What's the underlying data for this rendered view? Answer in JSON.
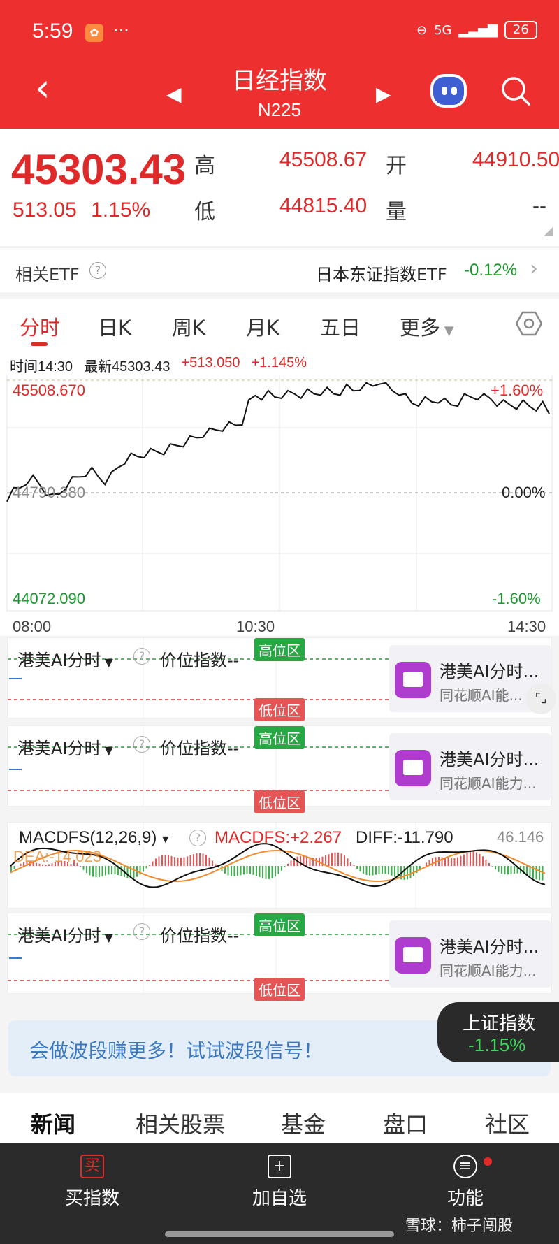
{
  "status_bar": {
    "time": "5:59",
    "app_icon": "app-badge",
    "more": "···",
    "network": "5G",
    "battery": "26"
  },
  "header": {
    "title": "日经指数",
    "subtitle": "N225"
  },
  "quote": {
    "price": "45303.43",
    "change": "513.05",
    "change_pct": "1.15%",
    "high_label": "高",
    "high": "45508.67",
    "open_label": "开",
    "open": "44910.50",
    "low_label": "低",
    "low": "44815.40",
    "volume_label": "量",
    "volume": "--"
  },
  "etf": {
    "label": "相关ETF",
    "help": "?",
    "name": "日本东证指数ETF",
    "change": "-0.12%"
  },
  "tabs": [
    "分时",
    "日K",
    "周K",
    "月K",
    "五日",
    "更多"
  ],
  "info_line": {
    "time": "时间14:30",
    "latest": "最新45303.43",
    "change": "+513.050",
    "change_pct": "+1.145%"
  },
  "chart_data": {
    "type": "line",
    "title": "",
    "x_start": "08:00",
    "x_mid": "10:30",
    "x_end": "14:30",
    "y_high_label": "45508.670",
    "y_mid_label": "44790.380",
    "y_low_label": "44072.090",
    "pct_high": "+1.60%",
    "pct_mid": "0.00%",
    "pct_low": "-1.60%",
    "ylim": [
      44072.09,
      45508.67
    ],
    "series": [
      {
        "values": [
          44760,
          44800,
          44830,
          44870,
          44880,
          44850,
          44800,
          44760,
          44790,
          44840,
          44870,
          44900,
          44920,
          44930,
          44900,
          44870,
          44900,
          44960,
          45000,
          45020,
          45030,
          45040,
          45050,
          45060,
          45060,
          45080,
          45100,
          45110,
          45130,
          45150,
          45170,
          45180,
          45200,
          45210,
          45220,
          45230,
          45250,
          45360,
          45420,
          45410,
          45420,
          45410,
          45420,
          45420,
          45430,
          45420,
          45430,
          45430,
          45440,
          45440,
          45430,
          45440,
          45460,
          45450,
          45470,
          45470,
          45480,
          45510,
          45470,
          45450,
          45440,
          45400,
          45370,
          45370,
          45380,
          45380,
          45390,
          45370,
          45360,
          45370,
          45400,
          45410,
          45410,
          45400,
          45400,
          45370,
          45360,
          45360,
          45350,
          45360,
          45350,
          45340,
          45350,
          45303
        ]
      }
    ]
  },
  "ai_panel": {
    "title": "港美AI分时",
    "sub": "价位指数--",
    "high_zone": "高位区",
    "low_zone": "低位区",
    "promo_title": "港美AI分时...",
    "promo_sub_1": "同花顺AI能...",
    "promo_sub_2": "同花顺AI能力...",
    "help": "?"
  },
  "macd": {
    "title": "MACDFS(12,26,9)",
    "dfs": "MACDFS:+2.267",
    "diff": "DIFF:-11.790",
    "max": "46.146",
    "dea": "DEA:-14.023",
    "help": "?",
    "colors": {
      "up": "#e65555",
      "down": "#3bb34a",
      "diff": "#111111",
      "dea": "#f08a2c"
    }
  },
  "banner": {
    "text": "会做波段赚更多！试试波段信号！"
  },
  "index_pill": {
    "name": "上证指数",
    "value": "-1.15%"
  },
  "news_tabs": [
    "新闻",
    "相关股票",
    "基金",
    "盘口",
    "社区"
  ],
  "bottom_bar": {
    "buy_icon": "买",
    "buy": "买指数",
    "add": "加自选",
    "func": "功能"
  },
  "watermark": "雪球：柿子闯股",
  "colors": {
    "header_red": "#ee2f2f",
    "up": "#e02a2a",
    "down": "#1a9a2e"
  }
}
